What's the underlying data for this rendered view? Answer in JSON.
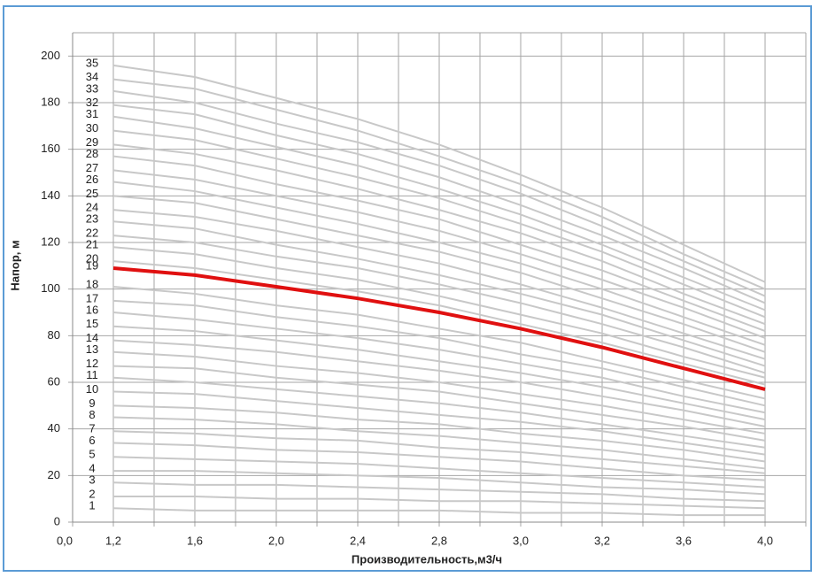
{
  "chart_data": {
    "type": "line",
    "x_label": "Производительность,м3/ч",
    "y_label": "Напор, м",
    "categories": [
      "0,0",
      "1,2",
      "1,6",
      "2,0",
      "2,4",
      "2,8",
      "3,0",
      "3,2",
      "3,6",
      "4,0"
    ],
    "ylim": [
      0,
      210
    ],
    "yticks": [
      0,
      20,
      40,
      60,
      80,
      100,
      120,
      140,
      160,
      180,
      200
    ],
    "grid": true,
    "series": [
      {
        "name": "1",
        "color": "#c8c8c8",
        "values": [
          null,
          6,
          5,
          5,
          5,
          5,
          4,
          4,
          3,
          3
        ]
      },
      {
        "name": "2",
        "color": "#c8c8c8",
        "values": [
          null,
          11,
          11,
          10,
          10,
          9,
          9,
          8,
          7,
          6
        ]
      },
      {
        "name": "3",
        "color": "#c8c8c8",
        "values": [
          null,
          17,
          16,
          16,
          15,
          14,
          13,
          12,
          10,
          9
        ]
      },
      {
        "name": "4",
        "color": "#c8c8c8",
        "values": [
          null,
          22,
          22,
          21,
          20,
          19,
          17,
          15,
          14,
          12
        ]
      },
      {
        "name": "5",
        "color": "#c8c8c8",
        "values": [
          null,
          28,
          27,
          26,
          25,
          23,
          21,
          19,
          17,
          15
        ]
      },
      {
        "name": "6",
        "color": "#c8c8c8",
        "values": [
          null,
          34,
          33,
          31,
          30,
          28,
          26,
          23,
          20,
          18
        ]
      },
      {
        "name": "7",
        "color": "#c8c8c8",
        "values": [
          null,
          39,
          38,
          36,
          35,
          32,
          30,
          27,
          24,
          21
        ]
      },
      {
        "name": "8",
        "color": "#c8c8c8",
        "values": [
          null,
          45,
          44,
          42,
          39,
          37,
          34,
          31,
          27,
          23
        ]
      },
      {
        "name": "9",
        "color": "#c8c8c8",
        "values": [
          null,
          50,
          49,
          47,
          44,
          42,
          38,
          35,
          31,
          26
        ]
      },
      {
        "name": "10",
        "color": "#c8c8c8",
        "values": [
          null,
          56,
          55,
          52,
          49,
          46,
          43,
          39,
          34,
          29
        ]
      },
      {
        "name": "11",
        "color": "#c8c8c8",
        "values": [
          null,
          62,
          60,
          57,
          54,
          51,
          47,
          42,
          37,
          32
        ]
      },
      {
        "name": "12",
        "color": "#c8c8c8",
        "values": [
          null,
          67,
          66,
          62,
          59,
          56,
          51,
          46,
          41,
          35
        ]
      },
      {
        "name": "13",
        "color": "#c8c8c8",
        "values": [
          null,
          73,
          71,
          67,
          64,
          60,
          55,
          50,
          44,
          38
        ]
      },
      {
        "name": "14",
        "color": "#c8c8c8",
        "values": [
          null,
          78,
          76,
          73,
          69,
          65,
          60,
          54,
          48,
          41
        ]
      },
      {
        "name": "15",
        "color": "#c8c8c8",
        "values": [
          null,
          84,
          82,
          78,
          74,
          69,
          64,
          58,
          51,
          44
        ]
      },
      {
        "name": "16",
        "color": "#c8c8c8",
        "values": [
          null,
          90,
          87,
          83,
          79,
          74,
          68,
          62,
          54,
          47
        ]
      },
      {
        "name": "17",
        "color": "#c8c8c8",
        "values": [
          null,
          95,
          93,
          88,
          84,
          79,
          72,
          66,
          58,
          50
        ]
      },
      {
        "name": "18",
        "color": "#c8c8c8",
        "values": [
          null,
          101,
          98,
          93,
          89,
          83,
          77,
          69,
          61,
          53
        ]
      },
      {
        "name": "19",
        "color": "#e01010",
        "values": [
          null,
          109,
          106,
          101,
          96,
          90,
          83,
          75,
          66,
          57
        ]
      },
      {
        "name": "20",
        "color": "#c8c8c8",
        "values": [
          null,
          112,
          109,
          104,
          99,
          93,
          85,
          77,
          68,
          59
        ]
      },
      {
        "name": "21",
        "color": "#c8c8c8",
        "values": [
          null,
          118,
          115,
          109,
          104,
          97,
          89,
          81,
          71,
          62
        ]
      },
      {
        "name": "22",
        "color": "#c8c8c8",
        "values": [
          null,
          123,
          120,
          114,
          109,
          102,
          94,
          85,
          75,
          64
        ]
      },
      {
        "name": "23",
        "color": "#c8c8c8",
        "values": [
          null,
          129,
          126,
          119,
          113,
          106,
          98,
          89,
          78,
          67
        ]
      },
      {
        "name": "24",
        "color": "#c8c8c8",
        "values": [
          null,
          134,
          131,
          125,
          118,
          111,
          102,
          92,
          81,
          70
        ]
      },
      {
        "name": "25",
        "color": "#c8c8c8",
        "values": [
          null,
          140,
          137,
          130,
          123,
          116,
          107,
          96,
          85,
          73
        ]
      },
      {
        "name": "26",
        "color": "#c8c8c8",
        "values": [
          null,
          146,
          142,
          135,
          128,
          120,
          111,
          100,
          88,
          76
        ]
      },
      {
        "name": "27",
        "color": "#c8c8c8",
        "values": [
          null,
          151,
          147,
          140,
          133,
          125,
          115,
          104,
          92,
          79
        ]
      },
      {
        "name": "28",
        "color": "#c8c8c8",
        "values": [
          null,
          157,
          153,
          145,
          138,
          130,
          119,
          108,
          95,
          82
        ]
      },
      {
        "name": "29",
        "color": "#c8c8c8",
        "values": [
          null,
          162,
          158,
          151,
          143,
          134,
          124,
          112,
          98,
          85
        ]
      },
      {
        "name": "30",
        "color": "#c8c8c8",
        "values": [
          null,
          168,
          164,
          156,
          148,
          139,
          128,
          116,
          102,
          88
        ]
      },
      {
        "name": "31",
        "color": "#c8c8c8",
        "values": [
          null,
          174,
          169,
          161,
          153,
          143,
          132,
          119,
          105,
          91
        ]
      },
      {
        "name": "32",
        "color": "#c8c8c8",
        "values": [
          null,
          179,
          175,
          166,
          158,
          148,
          136,
          123,
          109,
          94
        ]
      },
      {
        "name": "33",
        "color": "#c8c8c8",
        "values": [
          null,
          185,
          180,
          171,
          163,
          153,
          141,
          127,
          112,
          97
        ]
      },
      {
        "name": "34",
        "color": "#c8c8c8",
        "values": [
          null,
          190,
          186,
          177,
          168,
          157,
          145,
          131,
          115,
          100
        ]
      },
      {
        "name": "35",
        "color": "#c8c8c8",
        "values": [
          null,
          196,
          191,
          182,
          173,
          162,
          149,
          135,
          119,
          103
        ]
      }
    ]
  }
}
